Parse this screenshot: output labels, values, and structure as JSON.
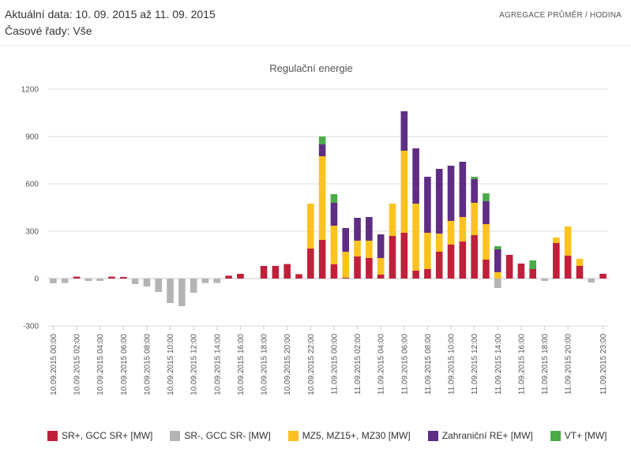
{
  "header": {
    "date_line": "Aktuální data: 10. 09. 2015 až 11. 09. 2015",
    "series_line": "Časové řady: Vše",
    "aggregation": "AGREGACE PRŮMĚR / HODINA"
  },
  "chart_data": {
    "type": "bar",
    "stacked": true,
    "title": "Regulační energie",
    "xlabel": "",
    "ylabel": "",
    "ylim": [
      -300,
      1200
    ],
    "yticks": [
      -300,
      0,
      300,
      600,
      900,
      1200
    ],
    "grid": true,
    "legend_position": "bottom",
    "categories": [
      "10.09.2015 00:00",
      "10.09.2015 01:00",
      "10.09.2015 02:00",
      "10.09.2015 03:00",
      "10.09.2015 04:00",
      "10.09.2015 05:00",
      "10.09.2015 06:00",
      "10.09.2015 07:00",
      "10.09.2015 08:00",
      "10.09.2015 09:00",
      "10.09.2015 10:00",
      "10.09.2015 11:00",
      "10.09.2015 12:00",
      "10.09.2015 13:00",
      "10.09.2015 14:00",
      "10.09.2015 15:00",
      "10.09.2015 16:00",
      "10.09.2015 17:00",
      "10.09.2015 18:00",
      "10.09.2015 19:00",
      "10.09.2015 20:00",
      "10.09.2015 21:00",
      "10.09.2015 22:00",
      "10.09.2015 23:00",
      "11.09.2015 00:00",
      "11.09.2015 01:00",
      "11.09.2015 02:00",
      "11.09.2015 03:00",
      "11.09.2015 04:00",
      "11.09.2015 05:00",
      "11.09.2015 06:00",
      "11.09.2015 07:00",
      "11.09.2015 08:00",
      "11.09.2015 09:00",
      "11.09.2015 10:00",
      "11.09.2015 11:00",
      "11.09.2015 12:00",
      "11.09.2015 13:00",
      "11.09.2015 14:00",
      "11.09.2015 15:00",
      "11.09.2015 16:00",
      "11.09.2015 17:00",
      "11.09.2015 18:00",
      "11.09.2015 19:00",
      "11.09.2015 20:00",
      "11.09.2015 21:00",
      "11.09.2015 22:00",
      "11.09.2015 23:00"
    ],
    "xtick_labels": [
      "10.09.2015 00:00",
      "10.09.2015 02:00",
      "10.09.2015 04:00",
      "10.09.2015 06:00",
      "10.09.2015 08:00",
      "10.09.2015 10:00",
      "10.09.2015 12:00",
      "10.09.2015 14:00",
      "10.09.2015 16:00",
      "10.09.2015 18:00",
      "10.09.2015 20:00",
      "10.09.2015 22:00",
      "11.09.2015 00:00",
      "11.09.2015 02:00",
      "11.09.2015 04:00",
      "11.09.2015 06:00",
      "11.09.2015 08:00",
      "11.09.2015 10:00",
      "11.09.2015 12:00",
      "11.09.2015 14:00",
      "11.09.2015 16:00",
      "11.09.2015 18:00",
      "11.09.2015 20:00",
      "11.09.2015 23:00"
    ],
    "series": [
      {
        "name": "SR+, GCC SR+ [MW]",
        "color": "#c0203a",
        "values": [
          0,
          0,
          12,
          0,
          0,
          12,
          10,
          0,
          0,
          0,
          0,
          0,
          0,
          0,
          0,
          18,
          30,
          0,
          80,
          80,
          92,
          28,
          190,
          245,
          90,
          5,
          140,
          130,
          25,
          270,
          290,
          50,
          60,
          170,
          215,
          235,
          275,
          120,
          0,
          150,
          95,
          60,
          0,
          225,
          145,
          80,
          0,
          30
        ]
      },
      {
        "name": "SR-, GCC SR- [MW]",
        "color": "#b4b4b4",
        "values": [
          -30,
          -28,
          0,
          -15,
          -15,
          0,
          0,
          -35,
          -50,
          -85,
          -155,
          -175,
          -90,
          -28,
          -28,
          0,
          0,
          0,
          0,
          0,
          0,
          0,
          0,
          0,
          0,
          0,
          0,
          0,
          0,
          0,
          0,
          0,
          0,
          0,
          0,
          0,
          0,
          0,
          -60,
          0,
          0,
          0,
          -15,
          0,
          0,
          0,
          -25,
          0
        ]
      },
      {
        "name": "MZ5, MZ15+, MZ30 [MW]",
        "color": "#fcc21f",
        "values": [
          0,
          0,
          0,
          0,
          0,
          0,
          0,
          0,
          0,
          0,
          0,
          0,
          0,
          0,
          0,
          0,
          0,
          0,
          0,
          0,
          0,
          0,
          285,
          530,
          245,
          165,
          100,
          110,
          105,
          205,
          520,
          425,
          230,
          115,
          150,
          155,
          205,
          225,
          40,
          0,
          0,
          0,
          0,
          35,
          185,
          45,
          0,
          0
        ]
      },
      {
        "name": "Zahraniční RE+ [MW]",
        "color": "#5f2d84",
        "values": [
          0,
          0,
          0,
          0,
          0,
          0,
          0,
          0,
          0,
          0,
          0,
          0,
          0,
          0,
          0,
          0,
          0,
          0,
          0,
          0,
          0,
          0,
          0,
          75,
          145,
          150,
          145,
          150,
          150,
          0,
          250,
          350,
          355,
          410,
          350,
          350,
          150,
          145,
          145,
          0,
          0,
          0,
          0,
          0,
          0,
          0,
          0,
          0
        ]
      },
      {
        "name": "VT+ [MW]",
        "color": "#4bab48",
        "values": [
          0,
          0,
          0,
          0,
          0,
          0,
          0,
          0,
          0,
          0,
          0,
          0,
          0,
          0,
          0,
          0,
          0,
          0,
          0,
          0,
          0,
          0,
          0,
          50,
          55,
          0,
          0,
          0,
          0,
          0,
          0,
          0,
          0,
          0,
          0,
          0,
          15,
          50,
          20,
          0,
          0,
          55,
          0,
          0,
          0,
          0,
          0,
          0
        ]
      }
    ]
  }
}
